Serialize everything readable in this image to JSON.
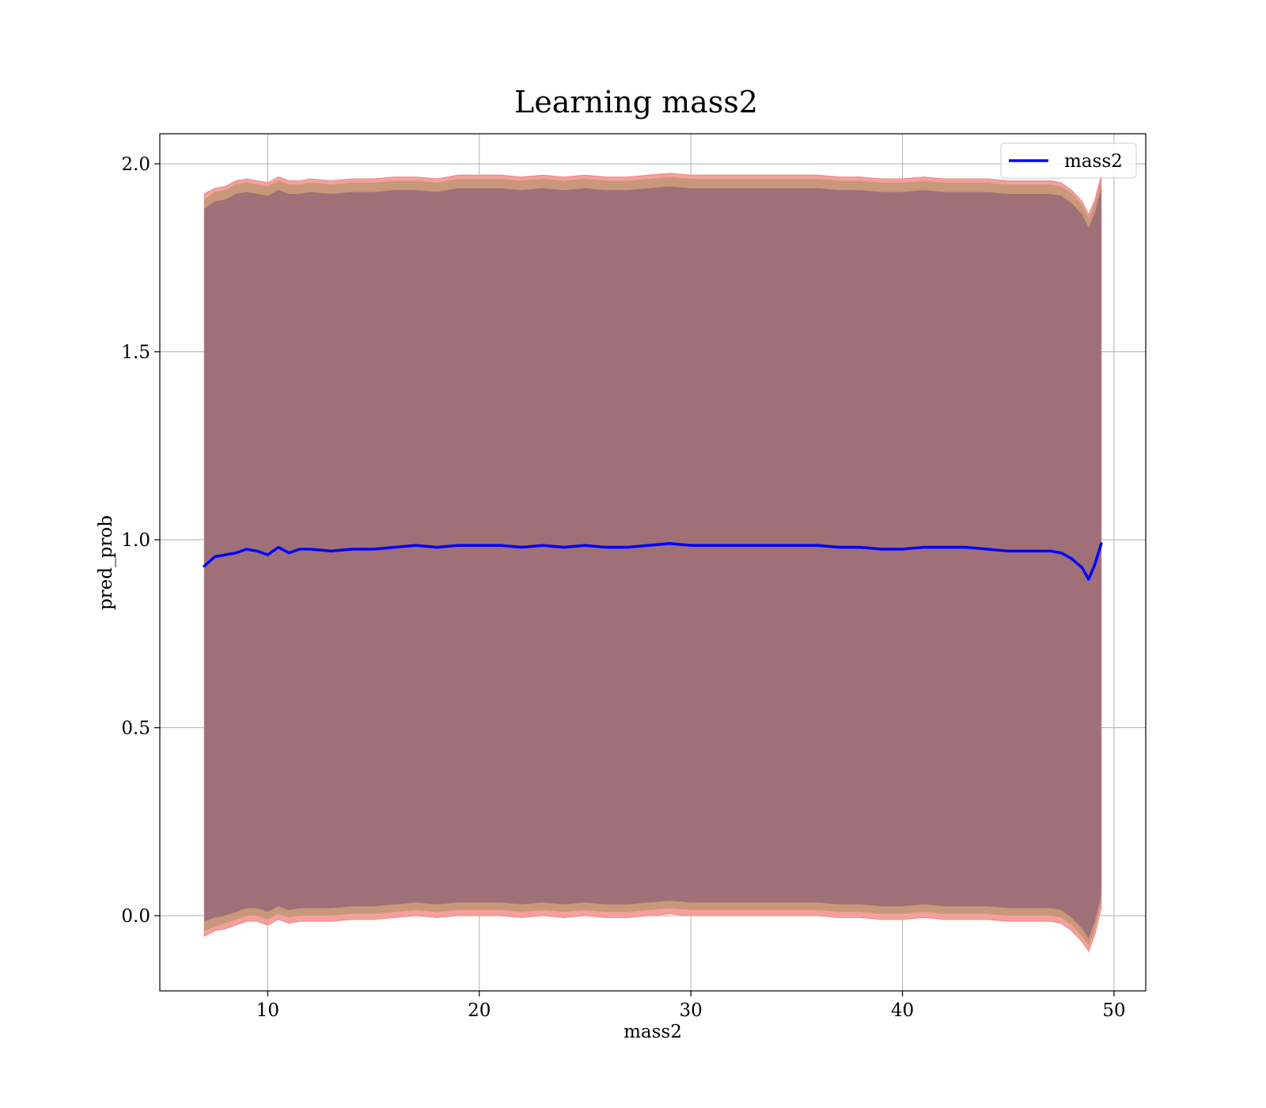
{
  "chart_data": {
    "type": "line",
    "title": "Learning mass2",
    "xlabel": "mass2",
    "ylabel": "pred_prob",
    "xlim": [
      4.9,
      51.5
    ],
    "ylim": [
      -0.2,
      2.08
    ],
    "xticks": [
      10,
      20,
      30,
      40,
      50
    ],
    "yticks": [
      0.0,
      0.5,
      1.0,
      1.5,
      2.0
    ],
    "xtick_labels": [
      "10",
      "20",
      "30",
      "40",
      "50"
    ],
    "ytick_labels": [
      "0.0",
      "0.5",
      "1.0",
      "1.5",
      "2.0"
    ],
    "grid": true,
    "legend": {
      "position": "top-right",
      "entries": [
        "mass2"
      ]
    },
    "colors": {
      "line": "#0000ff",
      "band_outer": "#f4a09c",
      "band_mid": "#c99779",
      "band_inner": "#a07078"
    },
    "series": [
      {
        "name": "mass2",
        "x": [
          7.0,
          7.5,
          8.0,
          8.5,
          9.0,
          9.5,
          10.0,
          10.5,
          11.0,
          11.5,
          12.0,
          13.0,
          14.0,
          15.0,
          16.0,
          17.0,
          18.0,
          19.0,
          20.0,
          21.0,
          22.0,
          23.0,
          24.0,
          25.0,
          26.0,
          27.0,
          28.0,
          29.0,
          30.0,
          31.0,
          32.0,
          33.0,
          34.0,
          35.0,
          36.0,
          37.0,
          38.0,
          39.0,
          40.0,
          41.0,
          42.0,
          43.0,
          44.0,
          45.0,
          46.0,
          47.0,
          47.5,
          48.0,
          48.5,
          48.8,
          49.1,
          49.4
        ],
        "y": [
          0.93,
          0.955,
          0.96,
          0.965,
          0.975,
          0.97,
          0.96,
          0.98,
          0.965,
          0.975,
          0.975,
          0.97,
          0.975,
          0.975,
          0.98,
          0.985,
          0.98,
          0.985,
          0.985,
          0.985,
          0.98,
          0.985,
          0.98,
          0.985,
          0.98,
          0.98,
          0.985,
          0.99,
          0.985,
          0.985,
          0.985,
          0.985,
          0.985,
          0.985,
          0.985,
          0.98,
          0.98,
          0.975,
          0.975,
          0.98,
          0.98,
          0.98,
          0.975,
          0.97,
          0.97,
          0.97,
          0.965,
          0.95,
          0.925,
          0.895,
          0.935,
          0.99
        ],
        "band_outer_upper": [
          1.92,
          1.935,
          1.94,
          1.955,
          1.96,
          1.955,
          1.95,
          1.965,
          1.955,
          1.955,
          1.96,
          1.955,
          1.96,
          1.96,
          1.965,
          1.965,
          1.96,
          1.97,
          1.97,
          1.97,
          1.965,
          1.97,
          1.965,
          1.97,
          1.965,
          1.965,
          1.97,
          1.975,
          1.97,
          1.97,
          1.97,
          1.97,
          1.97,
          1.97,
          1.97,
          1.965,
          1.965,
          1.96,
          1.96,
          1.965,
          1.96,
          1.96,
          1.96,
          1.955,
          1.955,
          1.955,
          1.95,
          1.93,
          1.9,
          1.865,
          1.905,
          1.97
        ],
        "band_outer_lower": [
          -0.055,
          -0.04,
          -0.035,
          -0.025,
          -0.015,
          -0.015,
          -0.025,
          -0.01,
          -0.02,
          -0.015,
          -0.015,
          -0.015,
          -0.01,
          -0.01,
          -0.005,
          0.0,
          -0.005,
          0.0,
          0.0,
          0.0,
          -0.005,
          0.0,
          -0.005,
          0.0,
          -0.005,
          -0.005,
          0.0,
          0.005,
          0.0,
          0.0,
          0.0,
          0.0,
          0.0,
          0.0,
          0.0,
          -0.005,
          -0.005,
          -0.01,
          -0.01,
          -0.005,
          -0.01,
          -0.01,
          -0.01,
          -0.015,
          -0.015,
          -0.015,
          -0.02,
          -0.04,
          -0.07,
          -0.095,
          -0.05,
          0.02
        ],
        "band_mid_upper": [
          1.905,
          1.925,
          1.93,
          1.945,
          1.95,
          1.945,
          1.94,
          1.955,
          1.945,
          1.945,
          1.95,
          1.945,
          1.95,
          1.95,
          1.955,
          1.955,
          1.95,
          1.96,
          1.96,
          1.96,
          1.955,
          1.96,
          1.955,
          1.96,
          1.955,
          1.955,
          1.96,
          1.965,
          1.96,
          1.96,
          1.96,
          1.96,
          1.96,
          1.96,
          1.96,
          1.955,
          1.955,
          1.95,
          1.95,
          1.955,
          1.95,
          1.95,
          1.95,
          1.945,
          1.945,
          1.945,
          1.94,
          1.92,
          1.89,
          1.855,
          1.895,
          1.96
        ],
        "band_mid_lower": [
          -0.04,
          -0.03,
          -0.02,
          -0.01,
          0.0,
          0.0,
          -0.01,
          0.005,
          -0.005,
          0.0,
          0.0,
          0.0,
          0.005,
          0.005,
          0.01,
          0.015,
          0.01,
          0.015,
          0.015,
          0.015,
          0.01,
          0.015,
          0.01,
          0.015,
          0.01,
          0.01,
          0.015,
          0.02,
          0.015,
          0.015,
          0.015,
          0.015,
          0.015,
          0.015,
          0.015,
          0.01,
          0.01,
          0.005,
          0.005,
          0.01,
          0.005,
          0.005,
          0.005,
          0.0,
          0.0,
          0.0,
          -0.005,
          -0.025,
          -0.055,
          -0.08,
          -0.035,
          0.035
        ],
        "band_inner_upper": [
          1.88,
          1.9,
          1.905,
          1.92,
          1.925,
          1.92,
          1.915,
          1.93,
          1.92,
          1.92,
          1.925,
          1.92,
          1.925,
          1.925,
          1.93,
          1.93,
          1.925,
          1.935,
          1.935,
          1.935,
          1.93,
          1.935,
          1.93,
          1.935,
          1.93,
          1.93,
          1.935,
          1.94,
          1.935,
          1.935,
          1.935,
          1.935,
          1.935,
          1.935,
          1.935,
          1.93,
          1.93,
          1.925,
          1.925,
          1.93,
          1.925,
          1.925,
          1.925,
          1.92,
          1.92,
          1.92,
          1.915,
          1.895,
          1.865,
          1.83,
          1.87,
          1.935
        ],
        "band_inner_lower": [
          -0.015,
          -0.005,
          0.0,
          0.01,
          0.02,
          0.02,
          0.01,
          0.025,
          0.015,
          0.02,
          0.02,
          0.02,
          0.025,
          0.025,
          0.03,
          0.035,
          0.03,
          0.035,
          0.035,
          0.035,
          0.03,
          0.035,
          0.03,
          0.035,
          0.03,
          0.03,
          0.035,
          0.04,
          0.035,
          0.035,
          0.035,
          0.035,
          0.035,
          0.035,
          0.035,
          0.03,
          0.03,
          0.025,
          0.025,
          0.03,
          0.025,
          0.025,
          0.025,
          0.02,
          0.02,
          0.02,
          0.015,
          -0.005,
          -0.035,
          -0.06,
          -0.015,
          0.055
        ]
      }
    ]
  }
}
